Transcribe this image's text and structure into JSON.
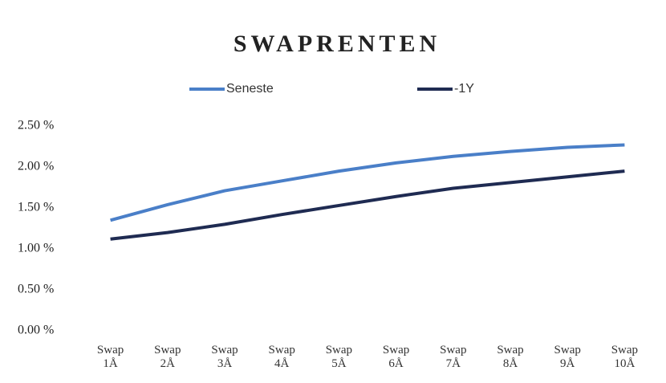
{
  "chart_data": {
    "type": "line",
    "title": "SWAPRENTEN",
    "categories": [
      "Swap 1Å",
      "Swap 2Å",
      "Swap 3Å",
      "Swap 4Å",
      "Swap 5Å",
      "Swap 6Å",
      "Swap 7Å",
      "Swap 8Å",
      "Swap 9Å",
      "Swap 10Å"
    ],
    "series": [
      {
        "name": "Seneste",
        "color": "#4a7fc8",
        "values": [
          1.35,
          1.54,
          1.71,
          1.83,
          1.95,
          2.05,
          2.13,
          2.19,
          2.24,
          2.27
        ]
      },
      {
        "name": "-1Y",
        "color": "#1f2b52",
        "values": [
          1.12,
          1.2,
          1.3,
          1.42,
          1.53,
          1.64,
          1.74,
          1.81,
          1.88,
          1.95
        ]
      }
    ],
    "ylim": [
      0,
      2.5
    ],
    "yticks": [
      {
        "value": 0,
        "label": "0.00 %"
      },
      {
        "value": 0.5,
        "label": "0.50 %"
      },
      {
        "value": 1,
        "label": "1.00 %"
      },
      {
        "value": 1.5,
        "label": "1.50 %"
      },
      {
        "value": 2,
        "label": "2.00 %"
      },
      {
        "value": 2.5,
        "label": "2.50 %"
      }
    ],
    "legend": "top",
    "grid": false
  }
}
